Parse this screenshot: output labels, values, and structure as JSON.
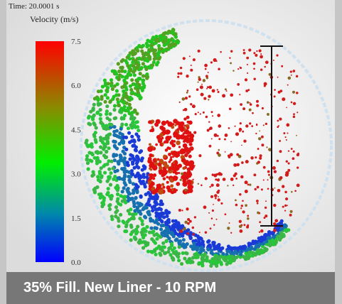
{
  "header": {
    "time": "Time: 20.0001 s"
  },
  "colorbar": {
    "title": "Velocity (m/s)",
    "ticks": [
      "7.5",
      "6.0",
      "4.5",
      "3.0",
      "1.5",
      "0.0"
    ]
  },
  "caption": "35% Fill. New Liner - 10 RPM"
}
